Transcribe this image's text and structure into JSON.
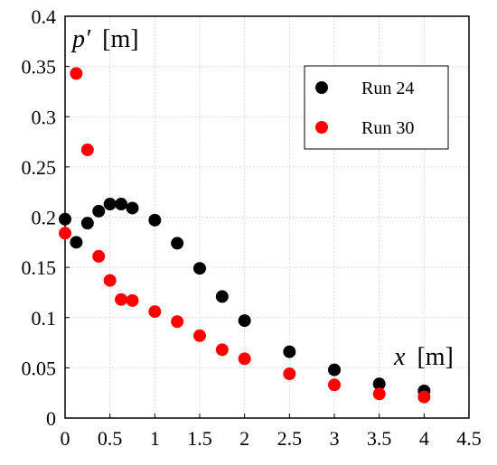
{
  "chart_data": {
    "type": "scatter",
    "xlabel": {
      "symbol": "x",
      "unit": "[m]"
    },
    "ylabel": {
      "symbol": "p′",
      "unit": "[m]"
    },
    "xlim": [
      0,
      4.5
    ],
    "ylim": [
      0,
      0.4
    ],
    "xticks": [
      "0",
      "0.5",
      "1",
      "1.5",
      "2",
      "2.5",
      "3",
      "3.5",
      "4",
      "4.5"
    ],
    "yticks": [
      "0",
      "0.05",
      "0.1",
      "0.15",
      "0.2",
      "0.25",
      "0.3",
      "0.35",
      "0.4"
    ],
    "grid": true,
    "legend_position": "top-right",
    "series": [
      {
        "name": "Run 24",
        "color": "#000000",
        "x": [
          0,
          0.125,
          0.25,
          0.375,
          0.5,
          0.625,
          0.75,
          1.0,
          1.25,
          1.5,
          1.75,
          2.0,
          2.5,
          3.0,
          3.5,
          4.0
        ],
        "y": [
          0.198,
          0.175,
          0.194,
          0.206,
          0.213,
          0.213,
          0.209,
          0.197,
          0.174,
          0.149,
          0.121,
          0.097,
          0.066,
          0.048,
          0.034,
          0.027
        ]
      },
      {
        "name": "Run 30",
        "color": "#ff0000",
        "x": [
          0,
          0.125,
          0.25,
          0.375,
          0.5,
          0.625,
          0.75,
          1.0,
          1.25,
          1.5,
          1.75,
          2.0,
          2.5,
          3.0,
          3.5,
          4.0
        ],
        "y": [
          0.184,
          0.343,
          0.267,
          0.161,
          0.137,
          0.118,
          0.117,
          0.106,
          0.096,
          0.082,
          0.068,
          0.059,
          0.044,
          0.033,
          0.024,
          0.021
        ]
      }
    ]
  }
}
